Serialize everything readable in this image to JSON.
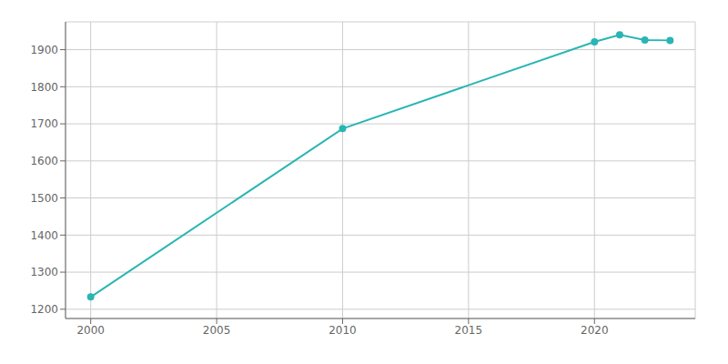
{
  "chart_data": {
    "type": "line",
    "x": [
      2000,
      2010,
      2020,
      2021,
      2022,
      2023
    ],
    "values": [
      1233,
      1687,
      1921,
      1940,
      1926,
      1925
    ],
    "color": "#2ab5b5",
    "marker": "circle",
    "xlim": [
      1999,
      2024
    ],
    "xticks": [
      2000,
      2005,
      2010,
      2015,
      2020
    ],
    "ylim": [
      1175,
      1975
    ],
    "yticks": [
      1200,
      1300,
      1400,
      1500,
      1600,
      1700,
      1800,
      1900
    ],
    "grid": true
  }
}
